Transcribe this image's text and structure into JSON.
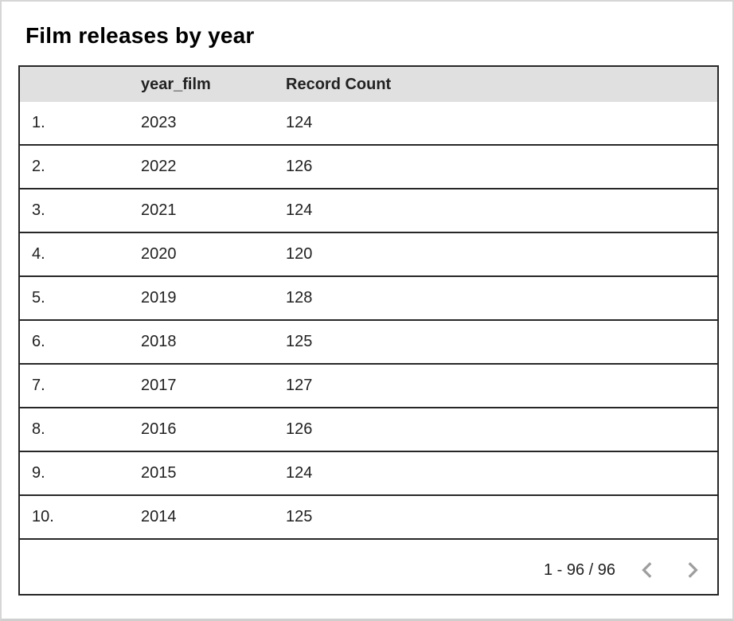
{
  "chart_data": {
    "type": "table",
    "title": "Film releases by year",
    "columns": [
      "year_film",
      "Record Count"
    ],
    "rows": [
      [
        2023,
        124
      ],
      [
        2022,
        126
      ],
      [
        2021,
        124
      ],
      [
        2020,
        120
      ],
      [
        2019,
        128
      ],
      [
        2018,
        125
      ],
      [
        2017,
        127
      ],
      [
        2016,
        126
      ],
      [
        2015,
        124
      ],
      [
        2014,
        125
      ]
    ],
    "pagination": "1 - 96 / 96",
    "layout": {
      "header_background": "#e0e0e0",
      "row_borders": true,
      "column_borders": false
    }
  },
  "header": {
    "title": "Film releases by year"
  },
  "table": {
    "col_index": "",
    "col_year": "year_film",
    "col_count": "Record Count",
    "rows": [
      {
        "index": "1.",
        "year": "2023",
        "count": "124"
      },
      {
        "index": "2.",
        "year": "2022",
        "count": "126"
      },
      {
        "index": "3.",
        "year": "2021",
        "count": "124"
      },
      {
        "index": "4.",
        "year": "2020",
        "count": "120"
      },
      {
        "index": "5.",
        "year": "2019",
        "count": "128"
      },
      {
        "index": "6.",
        "year": "2018",
        "count": "125"
      },
      {
        "index": "7.",
        "year": "2017",
        "count": "127"
      },
      {
        "index": "8.",
        "year": "2016",
        "count": "126"
      },
      {
        "index": "9.",
        "year": "2015",
        "count": "124"
      },
      {
        "index": "10.",
        "year": "2014",
        "count": "125"
      }
    ]
  },
  "pagination": {
    "label": "1 - 96 / 96",
    "prev_icon": "chevron-left",
    "next_icon": "chevron-right"
  },
  "colors": {
    "header_bg": "#e0e0e0",
    "border_dark": "#272727",
    "text": "#212121",
    "title_text": "#000000",
    "chevron": "#9e9e9e",
    "frame_border": "#d6d6d6"
  }
}
